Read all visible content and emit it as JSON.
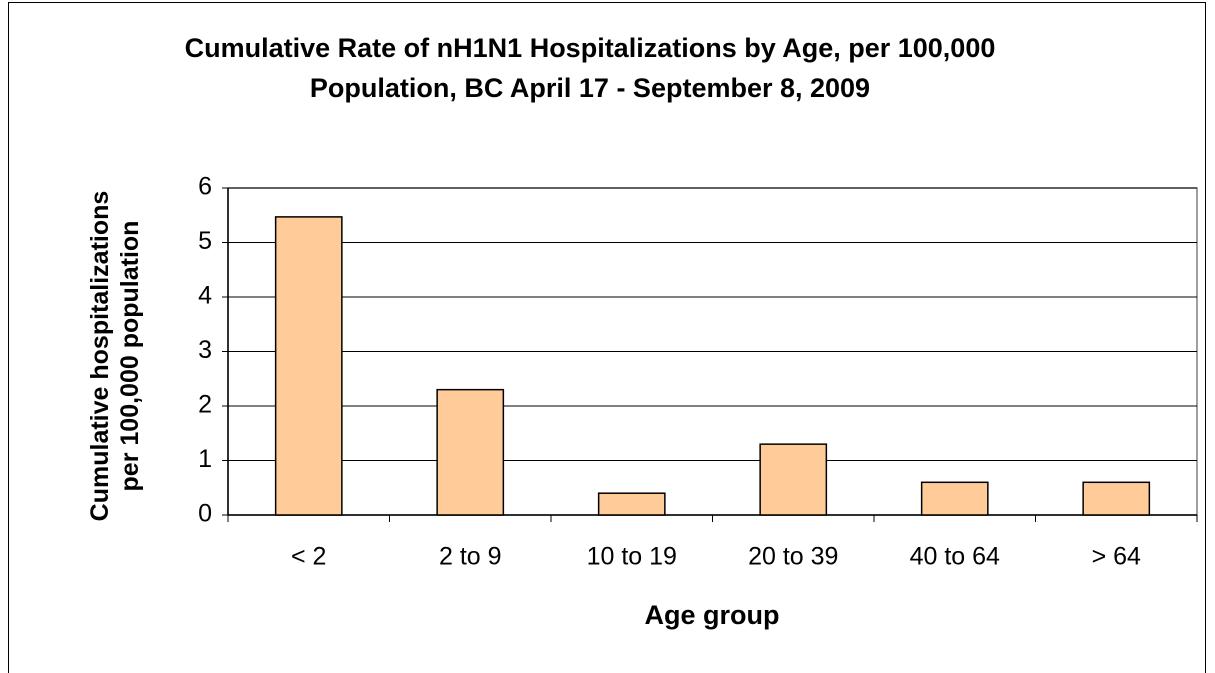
{
  "chart_data": {
    "type": "bar",
    "title": "Cumulative Rate of nH1N1 Hospitalizations by Age, per 100,000 Population, BC April 17 -  September 8, 2009",
    "x_label": "Age group",
    "y_label": "Cumulative hospitalizations per 100,000 population",
    "categories": [
      "< 2",
      "2 to 9",
      "10 to 19",
      "20 to 39",
      "40 to 64",
      "> 64"
    ],
    "values": [
      5.47,
      2.3,
      0.4,
      1.3,
      0.6,
      0.6
    ],
    "color": "#ffcc99",
    "ylim": [
      0,
      6
    ],
    "yticks": [
      0,
      1,
      2,
      3,
      4,
      5,
      6
    ],
    "grid": true
  }
}
